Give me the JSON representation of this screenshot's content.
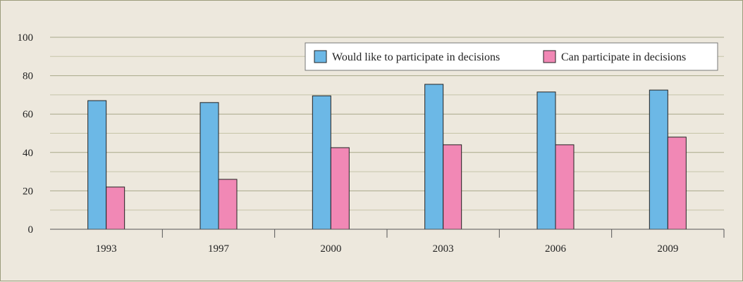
{
  "chart_data": {
    "type": "bar",
    "categories": [
      "1993",
      "1997",
      "2000",
      "2003",
      "2006",
      "2009"
    ],
    "series": [
      {
        "name": "Would like to participate in decisions",
        "color": "#6cb8e6",
        "values": [
          67,
          66,
          69.5,
          75.5,
          71.5,
          72.5
        ]
      },
      {
        "name": "Can participate in decisions",
        "color": "#f188b5",
        "values": [
          22,
          26,
          42.5,
          44,
          44,
          48
        ]
      }
    ],
    "ylim": [
      0,
      100
    ],
    "yticks": [
      "0",
      "20",
      "40",
      "60",
      "80",
      "100"
    ],
    "grid": true,
    "legend_position": "top-right",
    "title": "",
    "xlabel": "",
    "ylabel": ""
  }
}
